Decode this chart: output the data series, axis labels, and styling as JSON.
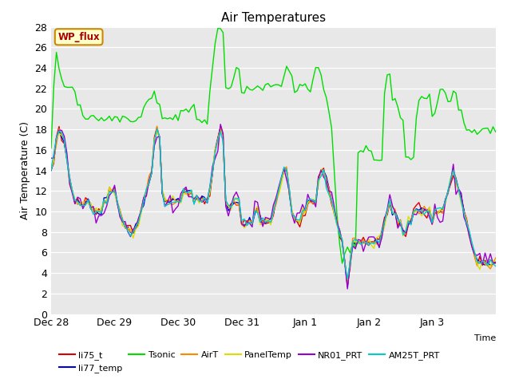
{
  "title": "Air Temperatures",
  "ylabel": "Air Temperature (C)",
  "xlabel": "Time",
  "ylim": [
    0,
    28
  ],
  "yticks": [
    0,
    2,
    4,
    6,
    8,
    10,
    12,
    14,
    16,
    18,
    20,
    22,
    24,
    26,
    28
  ],
  "background_color": "#e8e8e8",
  "plot_bg": "#e8e8e8",
  "series_colors": {
    "li75_t": "#dd0000",
    "li77_temp": "#0000dd",
    "Tsonic": "#00dd00",
    "AirT": "#ff8800",
    "PanelTemp": "#dddd00",
    "NR01_PRT": "#9900cc",
    "AM25T_PRT": "#00cccc"
  },
  "wp_flux_box": {
    "text": "WP_flux",
    "facecolor": "#ffffcc",
    "edgecolor": "#cc8800",
    "textcolor": "#aa0000"
  },
  "xtick_labels": [
    "Dec 28",
    "Dec 29",
    "Dec 30",
    "Dec 31",
    "Jan 1",
    "Jan 2",
    "Jan 3"
  ],
  "n_points": 169
}
